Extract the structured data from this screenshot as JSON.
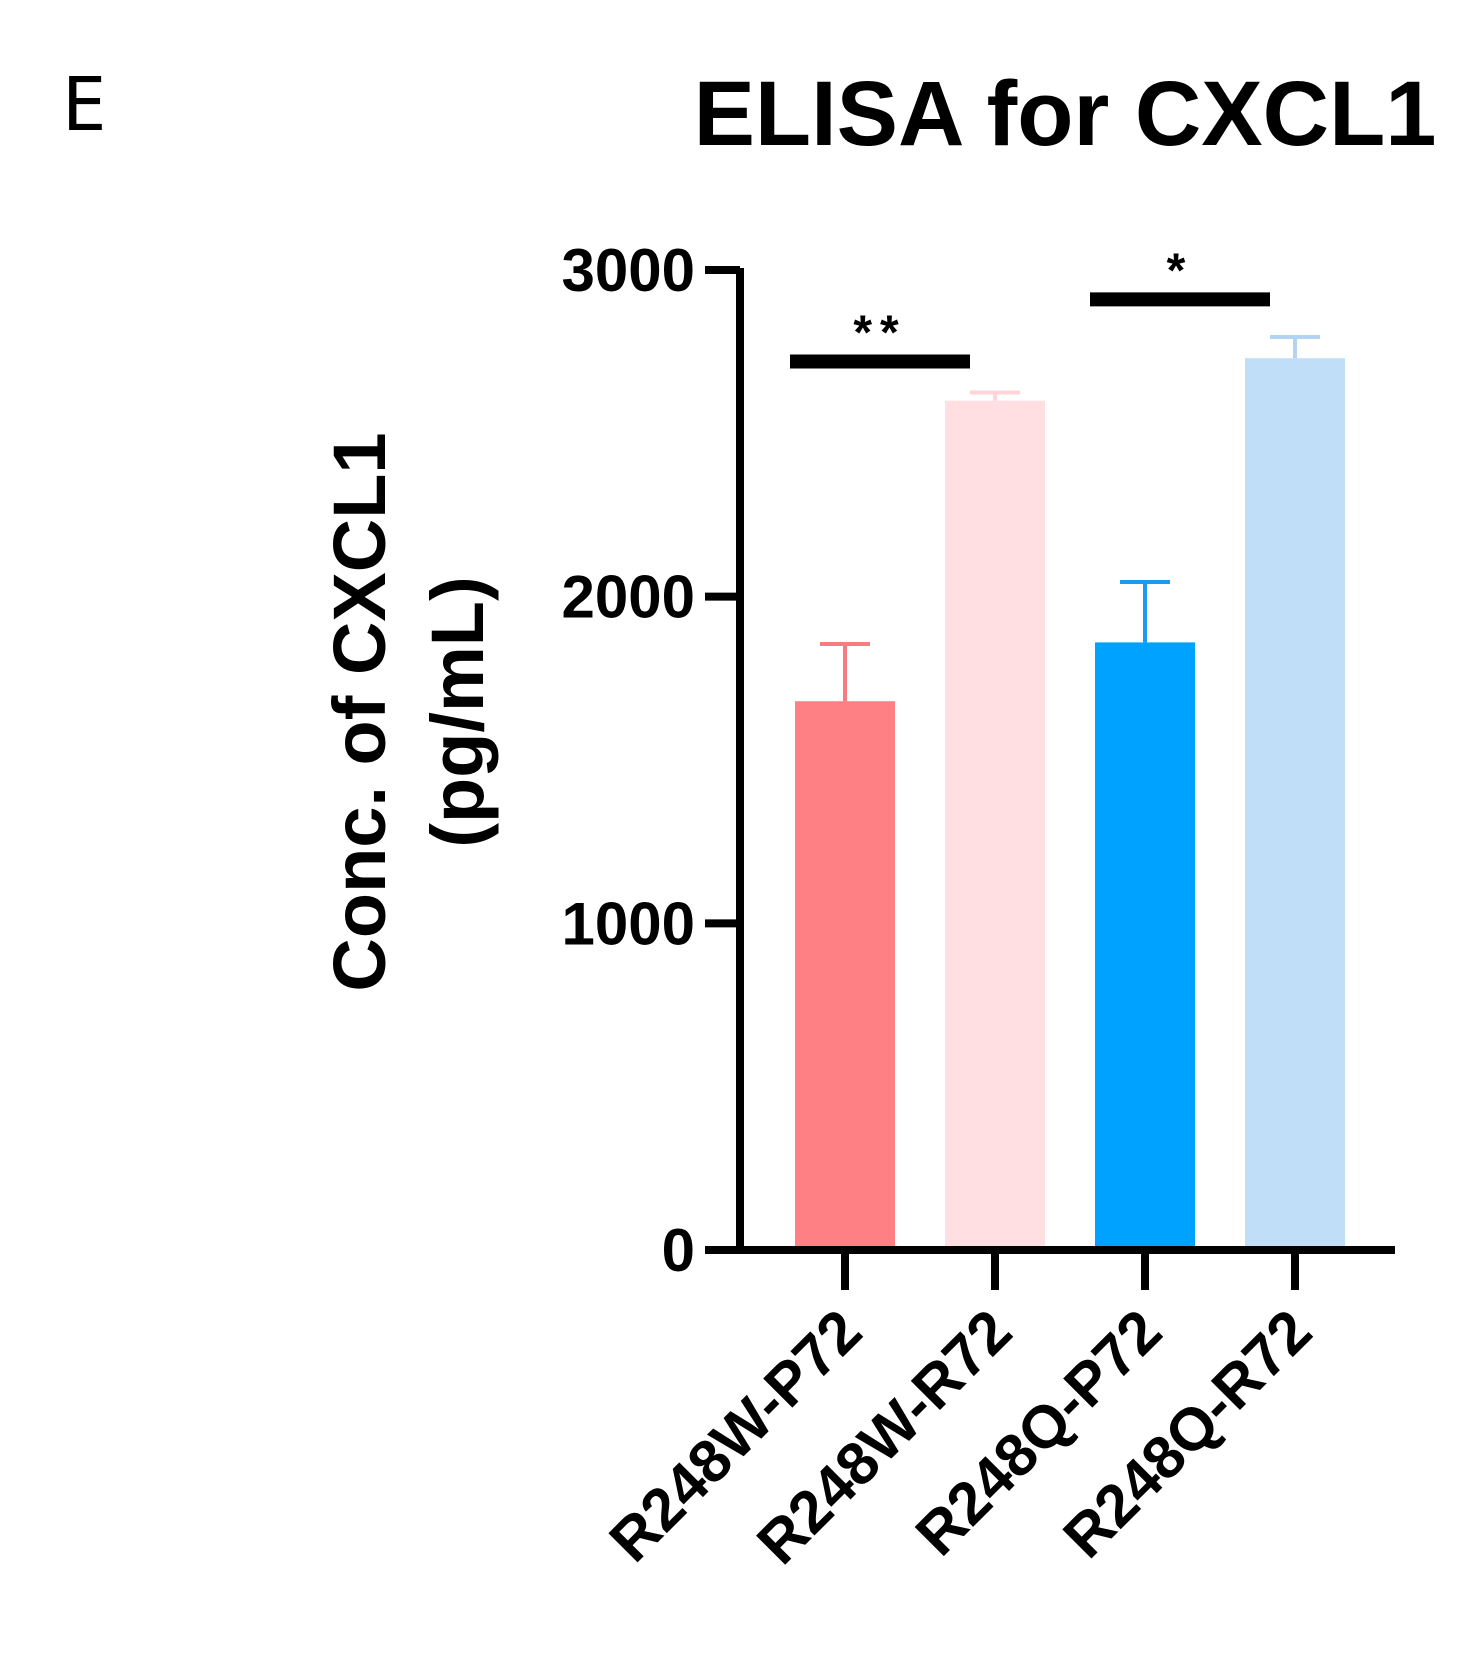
{
  "panel_label": "E",
  "chart_data": {
    "type": "bar",
    "title": "ELISA for CXCL1",
    "xlabel": "",
    "ylabel": "Conc. of CXCL1 (pg/mL)",
    "ylabel_lines": [
      "Conc. of CXCL1",
      "(pg/mL)"
    ],
    "categories": [
      "R248W-P72",
      "R248W-R72",
      "R248Q-P72",
      "R248Q-R72"
    ],
    "values": [
      1680,
      2600,
      1860,
      2730
    ],
    "errors": [
      175,
      25,
      185,
      65
    ],
    "colors": [
      "#FF8084",
      "#FFDFE1",
      "#00A2FF",
      "#C0DEF8"
    ],
    "error_colors": [
      "#F77C80",
      "#FFD5D8",
      "#1B9BF0",
      "#B2D4F2"
    ],
    "ylim": [
      0,
      3000
    ],
    "yticks": [
      0,
      1000,
      2000,
      3000
    ],
    "grid": false,
    "significance": [
      {
        "from": 0,
        "to": 1,
        "label": "**",
        "level": 2720
      },
      {
        "from": 2,
        "to": 3,
        "label": "*",
        "level": 2910
      }
    ]
  }
}
